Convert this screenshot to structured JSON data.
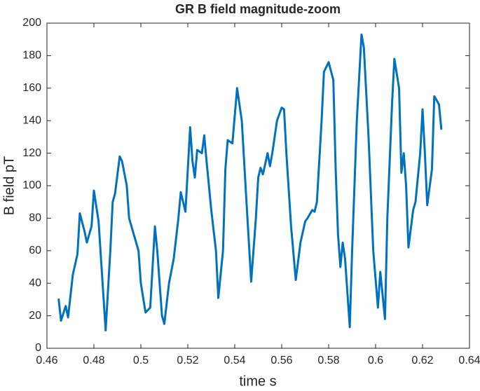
{
  "chart_data": {
    "type": "line",
    "title": "GR B field magnitude-zoom",
    "x_label": "time s",
    "y_label": "B field pT",
    "x": [
      0.465,
      0.466,
      0.468,
      0.469,
      0.471,
      0.473,
      0.474,
      0.476,
      0.477,
      0.479,
      0.48,
      0.482,
      0.485,
      0.487,
      0.488,
      0.489,
      0.491,
      0.492,
      0.494,
      0.495,
      0.497,
      0.499,
      0.5,
      0.502,
      0.504,
      0.506,
      0.507,
      0.509,
      0.51,
      0.512,
      0.514,
      0.516,
      0.517,
      0.519,
      0.52,
      0.521,
      0.522,
      0.523,
      0.524,
      0.526,
      0.527,
      0.528,
      0.53,
      0.532,
      0.533,
      0.535,
      0.536,
      0.537,
      0.539,
      0.541,
      0.543,
      0.545,
      0.547,
      0.549,
      0.55,
      0.551,
      0.552,
      0.554,
      0.555,
      0.556,
      0.558,
      0.56,
      0.561,
      0.562,
      0.564,
      0.566,
      0.568,
      0.57,
      0.571,
      0.573,
      0.574,
      0.575,
      0.577,
      0.578,
      0.58,
      0.582,
      0.583,
      0.584,
      0.585,
      0.586,
      0.587,
      0.589,
      0.59,
      0.592,
      0.594,
      0.595,
      0.597,
      0.599,
      0.601,
      0.602,
      0.604,
      0.605,
      0.607,
      0.608,
      0.61,
      0.611,
      0.612,
      0.613,
      0.614,
      0.616,
      0.617,
      0.619,
      0.62,
      0.621,
      0.622,
      0.624,
      0.625,
      0.627,
      0.628
    ],
    "series": [
      {
        "name": "B field",
        "color": "#0072bd",
        "values": [
          30,
          17,
          26,
          19,
          45,
          58,
          83,
          72,
          65,
          75,
          97,
          78,
          11,
          60,
          90,
          95,
          118,
          115,
          100,
          80,
          70,
          60,
          40,
          22,
          25,
          75,
          60,
          20,
          15,
          40,
          55,
          80,
          96,
          84,
          110,
          136,
          115,
          105,
          122,
          120,
          131,
          115,
          85,
          60,
          31,
          60,
          110,
          128,
          126,
          160,
          140,
          90,
          41,
          80,
          105,
          111,
          107,
          120,
          112,
          120,
          140,
          148,
          147,
          120,
          75,
          42,
          65,
          78,
          80,
          85,
          84,
          90,
          140,
          170,
          176,
          165,
          110,
          70,
          50,
          65,
          55,
          13,
          60,
          140,
          193,
          185,
          130,
          60,
          25,
          47,
          18,
          80,
          150,
          178,
          160,
          108,
          120,
          100,
          62,
          85,
          90,
          120,
          147,
          120,
          88,
          110,
          155,
          150,
          135
        ]
      }
    ],
    "xlim": [
      0.46,
      0.64
    ],
    "xticks": [
      0.46,
      0.48,
      0.5,
      0.52,
      0.54,
      0.56,
      0.58,
      0.6,
      0.62,
      0.64
    ],
    "ylim": [
      0,
      200
    ],
    "yticks": [
      0,
      20,
      40,
      60,
      80,
      100,
      120,
      140,
      160,
      180,
      200
    ],
    "grid": false
  }
}
